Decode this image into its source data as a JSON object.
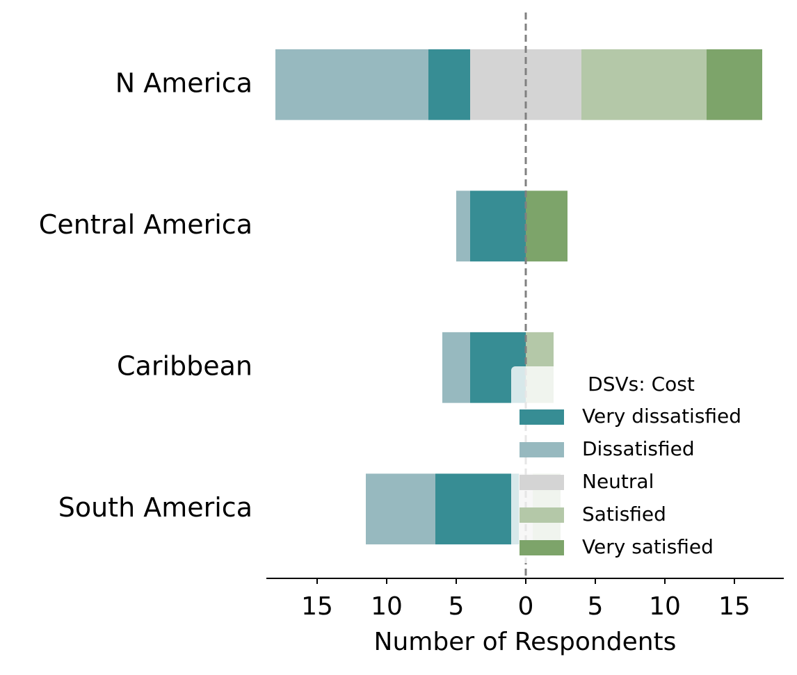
{
  "chart_data": {
    "type": "diverging-bar",
    "categories": [
      "N America",
      "Central America",
      "Caribbean",
      "South America"
    ],
    "series": [
      {
        "name": "Very dissatisfied",
        "color": "#378d94",
        "side": "left",
        "values": [
          3,
          4,
          4,
          6
        ]
      },
      {
        "name": "Dissatisfied",
        "color": "#97b9bf",
        "side": "left",
        "values": [
          11,
          1,
          2,
          5
        ]
      },
      {
        "name": "Neutral",
        "color": "#d4d4d4",
        "side": "center",
        "values": [
          8,
          0,
          0,
          1
        ]
      },
      {
        "name": "Satisfied",
        "color": "#b4c8a8",
        "side": "right",
        "values": [
          9,
          0,
          2,
          2
        ]
      },
      {
        "name": "Very satisfied",
        "color": "#7da46a",
        "side": "right",
        "values": [
          4,
          3,
          0,
          0
        ]
      }
    ],
    "xlabel": "Number of Respondents",
    "legend_title": "DSVs: Cost",
    "legend": "lower right",
    "xlim": [
      -18.65,
      18.55
    ],
    "xticks": [
      {
        "value": -15,
        "label": "15"
      },
      {
        "value": -10,
        "label": "10"
      },
      {
        "value": -5,
        "label": "5"
      },
      0,
      5,
      10,
      15
    ]
  }
}
